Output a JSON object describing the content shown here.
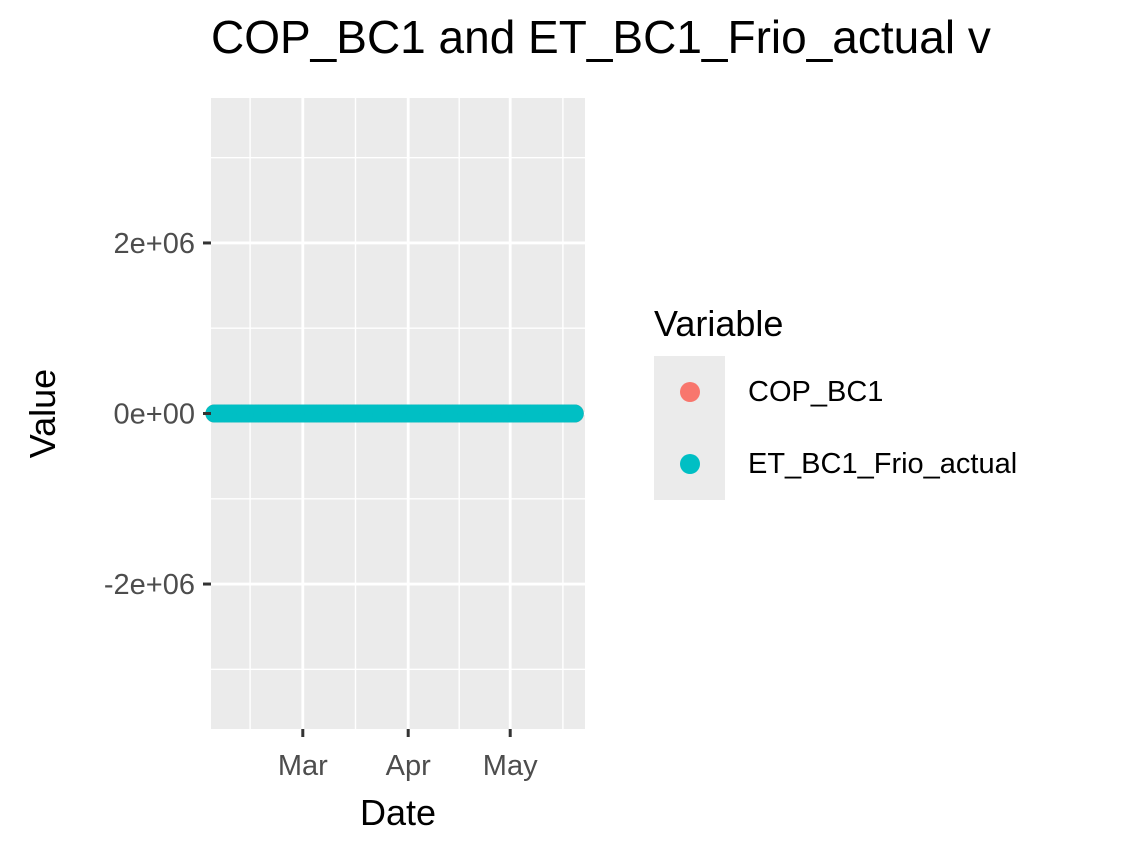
{
  "chart_data": {
    "type": "scatter",
    "title": "COP_BC1 and ET_BC1_Frio_actual v",
    "xlabel": "Date",
    "ylabel": "Value",
    "x_ticks": [
      "Mar",
      "Apr",
      "May"
    ],
    "x_tick_dates": [
      "2024-03-01",
      "2024-04-01",
      "2024-05-01"
    ],
    "x_range": [
      "2024-02-03",
      "2024-05-23"
    ],
    "y_ticks": [
      {
        "value": -2000000,
        "label": "-2e+06"
      },
      {
        "value": 0,
        "label": "0e+00"
      },
      {
        "value": 2000000,
        "label": "2e+06"
      }
    ],
    "ylim": [
      -3700000,
      3700000
    ],
    "grid": true,
    "legend": {
      "title": "Variable",
      "placement": "right"
    },
    "series": [
      {
        "name": "COP_BC1",
        "color": "#f8766d",
        "x_start": "2024-02-04",
        "x_end": "2024-05-20",
        "value": 0
      },
      {
        "name": "ET_BC1_Frio_actual",
        "color": "#00bfc4",
        "x_start": "2024-02-04",
        "x_end": "2024-05-20",
        "value": 0
      }
    ]
  }
}
